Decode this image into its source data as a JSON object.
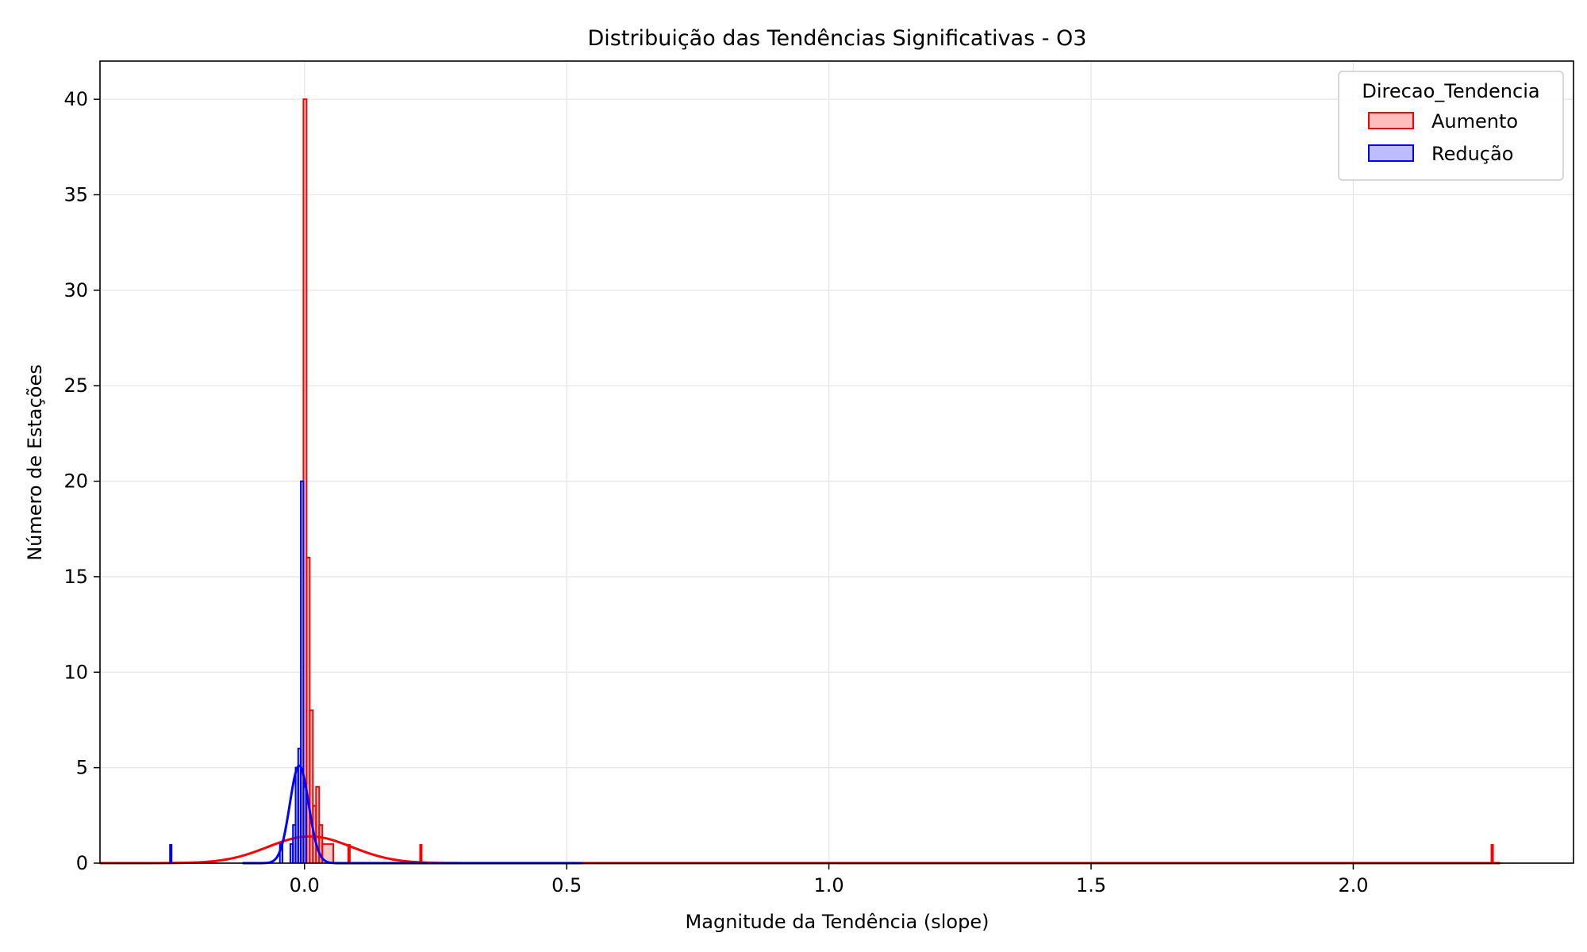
{
  "chart_data": {
    "type": "histogram",
    "title": "Distribuição das Tendências Significativas - O3",
    "xlabel": "Magnitude da Tendência (slope)",
    "ylabel": "Número de Estações",
    "xlim": [
      -0.39,
      2.42
    ],
    "ylim": [
      0,
      42
    ],
    "x_ticks": [
      0.0,
      0.5,
      1.0,
      1.5,
      2.0
    ],
    "x_tick_labels": [
      "0.0",
      "0.5",
      "1.0",
      "1.5",
      "2.0"
    ],
    "y_ticks": [
      0,
      5,
      10,
      15,
      20,
      25,
      30,
      35,
      40
    ],
    "y_tick_labels": [
      "0",
      "5",
      "10",
      "15",
      "20",
      "25",
      "30",
      "35",
      "40"
    ],
    "grid": true,
    "legend": {
      "title": "Direcao_Tendencia",
      "placement": "top-right",
      "entries": [
        "Aumento",
        "Redução"
      ]
    },
    "series": [
      {
        "name": "Aumento",
        "color": "#ff0000",
        "fill": "#ffbcbc",
        "histogram": [
          [
            -0.002,
            0.004,
            40
          ],
          [
            0.004,
            0.01,
            16
          ],
          [
            0.01,
            0.016,
            8
          ],
          [
            0.016,
            0.022,
            3
          ],
          [
            0.022,
            0.028,
            4
          ],
          [
            0.028,
            0.034,
            2
          ],
          [
            0.034,
            0.055,
            1
          ]
        ],
        "isolated_values": [
          0.085,
          0.222,
          2.265
        ],
        "kde": {
          "mean": 0.01,
          "std": 0.08,
          "peak": 1.4
        }
      },
      {
        "name": "Redução",
        "color": "#0000ff",
        "fill": "#bcbcff",
        "histogram": [
          [
            -0.047,
            -0.042,
            1
          ],
          [
            -0.027,
            -0.022,
            1
          ],
          [
            -0.022,
            -0.017,
            2
          ],
          [
            -0.017,
            -0.012,
            5
          ],
          [
            -0.012,
            -0.007,
            6
          ],
          [
            -0.007,
            -0.002,
            20
          ],
          [
            -0.002,
            0.003,
            4
          ]
        ],
        "isolated_values": [
          -0.255
        ],
        "kde": {
          "mean": -0.01,
          "std": 0.018,
          "peak": 5.1
        }
      }
    ]
  }
}
